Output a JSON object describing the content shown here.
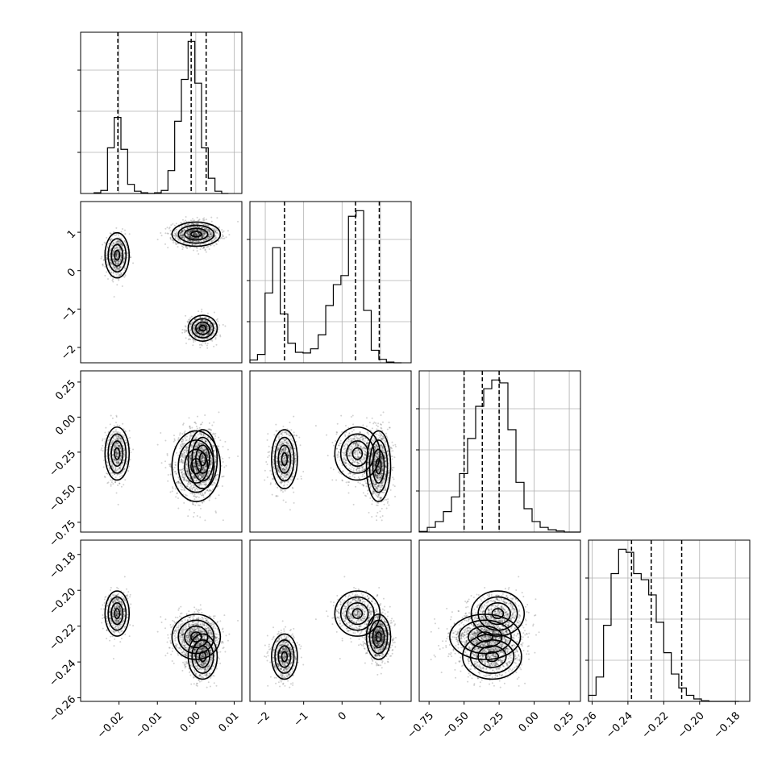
{
  "chart_data": {
    "type": "corner",
    "grid": true,
    "parameters": [
      {
        "range": [
          -0.03,
          0.012
        ],
        "ticks": [
          -0.02,
          -0.01,
          0.0,
          0.01
        ],
        "tick_labels": [
          "−0.02",
          "−0.01",
          "0.00",
          "0.01"
        ]
      },
      {
        "range": [
          -2.4,
          1.8
        ],
        "ticks": [
          -2,
          -1,
          0,
          1
        ],
        "tick_labels": [
          "−2",
          "−1",
          "0",
          "1"
        ]
      },
      {
        "range": [
          -0.82,
          0.33
        ],
        "ticks": [
          -0.75,
          -0.5,
          -0.25,
          0.0,
          0.25
        ],
        "tick_labels": [
          "−0.75",
          "−0.50",
          "−0.25",
          "0.00",
          "0.25"
        ]
      },
      {
        "range": [
          -0.262,
          -0.172
        ],
        "ticks": [
          -0.26,
          -0.24,
          -0.22,
          -0.2,
          -0.18
        ],
        "tick_labels": [
          "−0.26",
          "−0.24",
          "−0.22",
          "−0.20",
          "−0.18"
        ]
      }
    ],
    "histograms": [
      {
        "counts": [
          1,
          4,
          60,
          100,
          58,
          12,
          3,
          1,
          0,
          1,
          4,
          30,
          95,
          150,
          200,
          145,
          60,
          20,
          3,
          0
        ],
        "quantiles": [
          -0.0203,
          -0.0012,
          0.0027
        ]
      },
      {
        "counts": [
          4,
          12,
          100,
          165,
          70,
          28,
          15,
          14,
          20,
          40,
          82,
          112,
          125,
          210,
          218,
          75,
          18,
          5,
          1,
          0
        ],
        "quantiles": [
          -1.5,
          0.35,
          0.97
        ]
      },
      {
        "counts": [
          1,
          8,
          18,
          35,
          60,
          100,
          160,
          215,
          245,
          260,
          255,
          175,
          85,
          40,
          18,
          8,
          4,
          2,
          0,
          0
        ],
        "quantiles": [
          -0.5,
          -0.37,
          -0.25
        ]
      },
      {
        "counts": [
          10,
          40,
          125,
          210,
          250,
          245,
          210,
          200,
          175,
          130,
          80,
          45,
          22,
          10,
          4,
          1,
          0,
          0,
          0,
          0
        ],
        "quantiles": [
          -0.238,
          -0.227,
          -0.21
        ]
      }
    ],
    "clusters": [
      {
        "mean": [
          -0.0205,
          0.4,
          -0.26,
          -0.213
        ],
        "sd": [
          0.0015,
          0.28,
          0.09,
          0.006
        ],
        "weight": 0.25
      },
      {
        "mean": [
          0.0001,
          0.95,
          -0.35,
          -0.226
        ],
        "sd": [
          0.003,
          0.15,
          0.12,
          0.006
        ],
        "weight": 0.45
      },
      {
        "mean": [
          0.0018,
          -1.5,
          -0.3,
          -0.237
        ],
        "sd": [
          0.0018,
          0.16,
          0.1,
          0.006
        ],
        "weight": 0.3
      }
    ]
  }
}
